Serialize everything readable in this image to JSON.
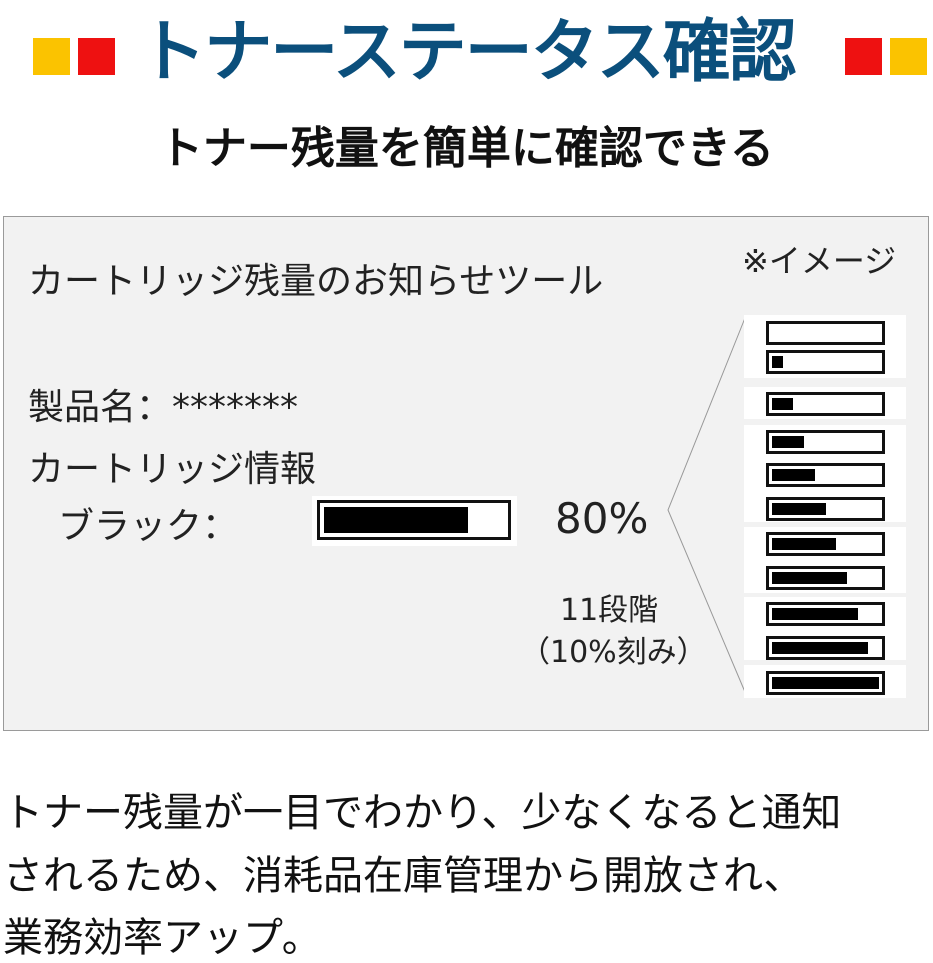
{
  "header": {
    "title": "トナーステータス確認",
    "subtitle": "トナー残量を簡単に確認できる",
    "accent_colors": {
      "title": "#0b4f7c",
      "yellow": "#fbc300",
      "red": "#ee1111"
    }
  },
  "panel": {
    "tool_title": "カートリッジ残量のお知らせツール",
    "image_note": "※イメージ",
    "product_label": "製品名：*******",
    "cartridge_info": "カートリッジ情報",
    "black_label": "ブラック：",
    "black_percent_text": "80%",
    "black_level": 80,
    "steps_label": "11段階",
    "steps_note": "（10%刻み）",
    "level_examples": [
      0,
      10,
      20,
      30,
      40,
      50,
      60,
      70,
      80,
      90,
      100
    ]
  },
  "footer": {
    "lines": [
      "トナー残量が一目でわかり、少なくなると通知",
      "されるため、消耗品在庫管理から開放され、",
      "業務効率アップ。"
    ]
  }
}
